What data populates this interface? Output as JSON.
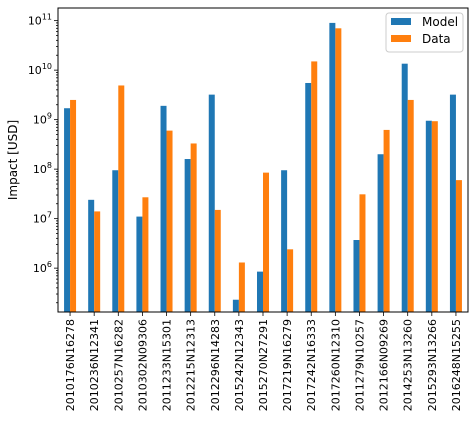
{
  "chart_data": {
    "type": "bar",
    "title": "",
    "xlabel": "",
    "ylabel": "Impact [USD]",
    "yscale": "log",
    "ylim": [
      130000,
      180000000000
    ],
    "yticks": [
      {
        "value": 1000000,
        "base": "10",
        "exp": "6"
      },
      {
        "value": 10000000,
        "base": "10",
        "exp": "7"
      },
      {
        "value": 100000000,
        "base": "10",
        "exp": "8"
      },
      {
        "value": 1000000000,
        "base": "10",
        "exp": "9"
      },
      {
        "value": 10000000000,
        "base": "10",
        "exp": "10"
      },
      {
        "value": 100000000000,
        "base": "10",
        "exp": "11"
      }
    ],
    "grid": false,
    "legend_position": "top-right",
    "categories": [
      "2010176N16278",
      "2010236N12341",
      "2010257N16282",
      "2010302N09306",
      "2011233N15301",
      "2012215N12313",
      "2012296N14283",
      "2015242N12343",
      "2015270N27291",
      "2017219N16279",
      "2017242N16333",
      "2017260N12310",
      "2011279N10257",
      "2012166N09269",
      "2014253N13260",
      "2015293N13266",
      "2016248N15255"
    ],
    "series": [
      {
        "name": "Model",
        "color": "#1f77b4",
        "values": [
          1700000000,
          24000000,
          95000000,
          11000000,
          1900000000,
          160000000,
          3200000000,
          230000,
          850000,
          95000000,
          5500000000,
          90000000000,
          3700000,
          200000000,
          13500000000,
          950000000,
          3200000000
        ]
      },
      {
        "name": "Data",
        "color": "#ff7f0e",
        "values": [
          2500000000,
          14000000,
          4900000000,
          27000000,
          600000000,
          330000000,
          15000000,
          1300000,
          85000000,
          2400000,
          15000000000,
          70000000000,
          31000000,
          620000000,
          2500000000,
          930000000,
          60000000
        ]
      }
    ]
  }
}
